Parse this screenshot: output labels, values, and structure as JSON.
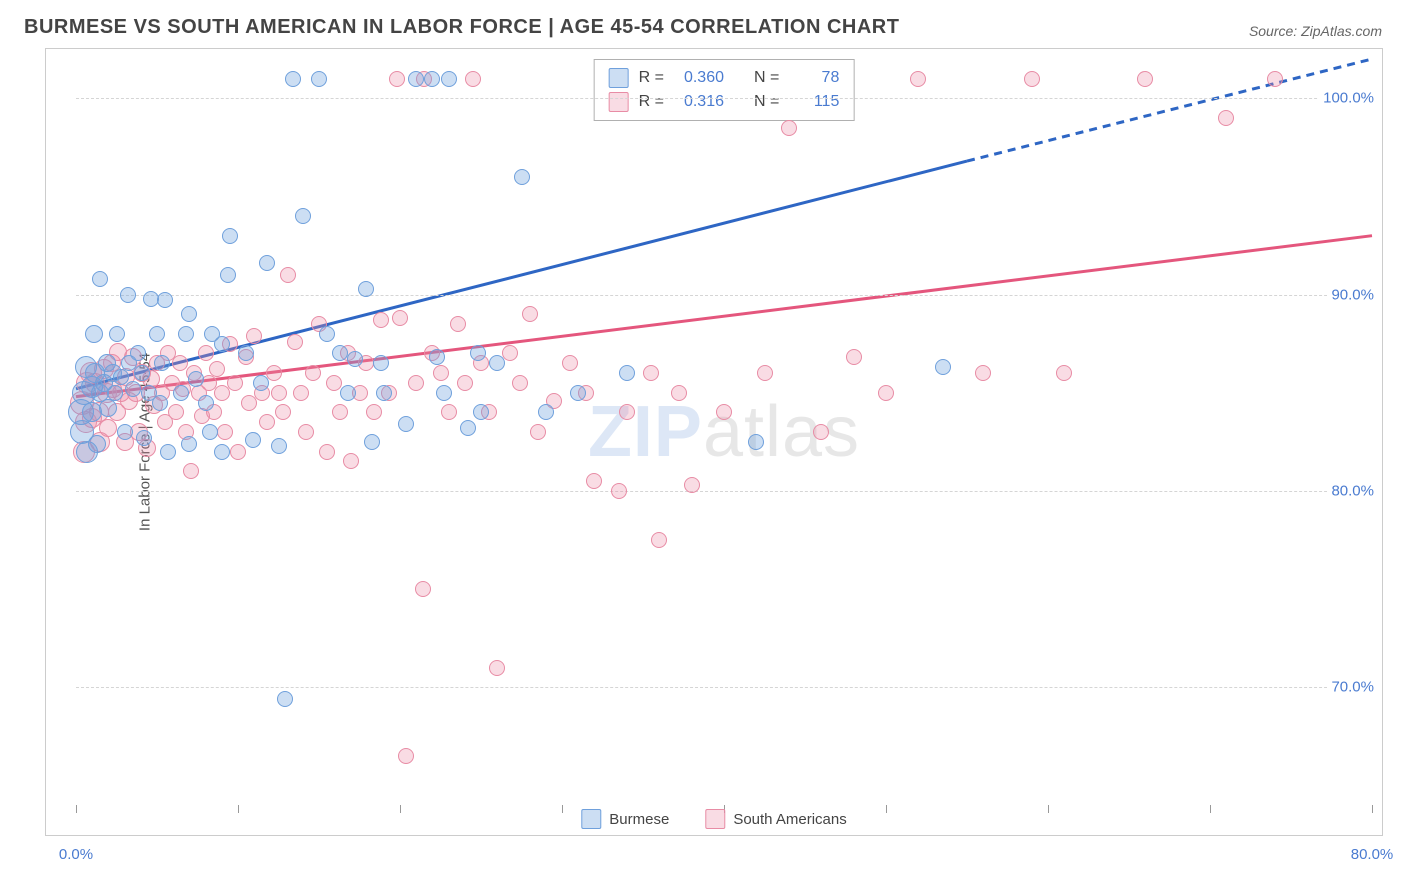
{
  "title": "BURMESE VS SOUTH AMERICAN IN LABOR FORCE | AGE 45-54 CORRELATION CHART",
  "source": "Source: ZipAtlas.com",
  "y_axis_label": "In Labor Force | Age 45-54",
  "watermark": {
    "zip": "ZIP",
    "atlas": "atlas"
  },
  "axes": {
    "x_min": 0,
    "x_max": 80,
    "y_min": 64,
    "y_max": 102,
    "x_ticks": [
      0,
      10,
      20,
      30,
      40,
      50,
      60,
      70,
      80
    ],
    "x_tick_labels": {
      "0": "0.0%",
      "80": "80.0%"
    },
    "y_grid": [
      70,
      80,
      90,
      100
    ],
    "y_tick_labels": {
      "70": "70.0%",
      "80": "80.0%",
      "90": "90.0%",
      "100": "100.0%"
    }
  },
  "colors": {
    "blue_fill": "rgba(110,160,220,0.35)",
    "blue_stroke": "#6fa0dc",
    "blue_line": "#2e66c4",
    "pink_fill": "rgba(235,140,165,0.30)",
    "pink_stroke": "#e88ca5",
    "pink_line": "#e4567d",
    "tick_text": "#4a7bd0",
    "grid": "#d5d5d5",
    "border": "#cccccc"
  },
  "legend_stats": {
    "series1": {
      "r_label": "R =",
      "r_value": "0.360",
      "n_label": "N =",
      "n_value": "78"
    },
    "series2": {
      "r_label": "R =",
      "r_value": "0.316",
      "n_label": "N =",
      "n_value": "115"
    }
  },
  "bottom_legend": {
    "series1_name": "Burmese",
    "series2_name": "South Americans"
  },
  "trend_lines": {
    "blue": {
      "x1": 0,
      "y1": 85.2,
      "x2_solid": 55,
      "y2_solid": 96.8,
      "x2_dash": 80,
      "y2_dash": 102.0
    },
    "pink": {
      "x1": 0,
      "y1": 84.8,
      "x2": 80,
      "y2": 93.0
    }
  },
  "point_radius_range": {
    "min": 6,
    "max": 13
  },
  "series": {
    "blue": [
      {
        "x": 0.3,
        "y": 84.0,
        "r": 13
      },
      {
        "x": 0.5,
        "y": 85.0,
        "r": 12
      },
      {
        "x": 0.4,
        "y": 83.0,
        "r": 12
      },
      {
        "x": 0.7,
        "y": 82.0,
        "r": 11
      },
      {
        "x": 0.6,
        "y": 86.3,
        "r": 11
      },
      {
        "x": 1.0,
        "y": 85.3,
        "r": 11
      },
      {
        "x": 1.1,
        "y": 88.0,
        "r": 9
      },
      {
        "x": 1.0,
        "y": 84.0,
        "r": 10
      },
      {
        "x": 1.2,
        "y": 86.0,
        "r": 10
      },
      {
        "x": 1.3,
        "y": 82.4,
        "r": 9
      },
      {
        "x": 1.5,
        "y": 85.0,
        "r": 9
      },
      {
        "x": 1.5,
        "y": 90.8,
        "r": 8
      },
      {
        "x": 1.7,
        "y": 85.5,
        "r": 9
      },
      {
        "x": 1.9,
        "y": 86.5,
        "r": 9
      },
      {
        "x": 2.0,
        "y": 84.2,
        "r": 9
      },
      {
        "x": 2.3,
        "y": 86.0,
        "r": 9
      },
      {
        "x": 2.4,
        "y": 85.0,
        "r": 8
      },
      {
        "x": 2.5,
        "y": 88.0,
        "r": 8
      },
      {
        "x": 2.8,
        "y": 85.8,
        "r": 8
      },
      {
        "x": 3.3,
        "y": 86.5,
        "r": 8
      },
      {
        "x": 3.0,
        "y": 83.0,
        "r": 8
      },
      {
        "x": 3.2,
        "y": 90.0,
        "r": 8
      },
      {
        "x": 3.5,
        "y": 85.2,
        "r": 8
      },
      {
        "x": 3.8,
        "y": 87.0,
        "r": 8
      },
      {
        "x": 4.1,
        "y": 86.0,
        "r": 8
      },
      {
        "x": 4.5,
        "y": 85.0,
        "r": 8
      },
      {
        "x": 4.2,
        "y": 82.7,
        "r": 8
      },
      {
        "x": 4.6,
        "y": 89.8,
        "r": 8
      },
      {
        "x": 5.0,
        "y": 88.0,
        "r": 8
      },
      {
        "x": 5.3,
        "y": 86.5,
        "r": 8
      },
      {
        "x": 5.7,
        "y": 82.0,
        "r": 8
      },
      {
        "x": 5.5,
        "y": 89.7,
        "r": 8
      },
      {
        "x": 5.2,
        "y": 84.5,
        "r": 8
      },
      {
        "x": 6.5,
        "y": 85.0,
        "r": 8
      },
      {
        "x": 6.8,
        "y": 88.0,
        "r": 8
      },
      {
        "x": 7.0,
        "y": 89.0,
        "r": 8
      },
      {
        "x": 7.4,
        "y": 85.7,
        "r": 8
      },
      {
        "x": 7.0,
        "y": 82.4,
        "r": 8
      },
      {
        "x": 8.4,
        "y": 88.0,
        "r": 8
      },
      {
        "x": 8.0,
        "y": 84.5,
        "r": 8
      },
      {
        "x": 8.3,
        "y": 83.0,
        "r": 8
      },
      {
        "x": 9.0,
        "y": 87.5,
        "r": 8
      },
      {
        "x": 9.4,
        "y": 91.0,
        "r": 8
      },
      {
        "x": 9.5,
        "y": 93.0,
        "r": 8
      },
      {
        "x": 9.0,
        "y": 82.0,
        "r": 8
      },
      {
        "x": 10.5,
        "y": 87.0,
        "r": 8
      },
      {
        "x": 10.9,
        "y": 82.6,
        "r": 8
      },
      {
        "x": 11.4,
        "y": 85.5,
        "r": 8
      },
      {
        "x": 11.8,
        "y": 91.6,
        "r": 8
      },
      {
        "x": 12.5,
        "y": 82.3,
        "r": 8
      },
      {
        "x": 12.9,
        "y": 69.4,
        "r": 8
      },
      {
        "x": 13.4,
        "y": 101.0,
        "r": 8
      },
      {
        "x": 14.0,
        "y": 94.0,
        "r": 8
      },
      {
        "x": 15.0,
        "y": 101.0,
        "r": 8
      },
      {
        "x": 15.5,
        "y": 88.0,
        "r": 8
      },
      {
        "x": 16.3,
        "y": 87.0,
        "r": 8
      },
      {
        "x": 16.8,
        "y": 85.0,
        "r": 8
      },
      {
        "x": 17.9,
        "y": 90.3,
        "r": 8
      },
      {
        "x": 17.2,
        "y": 86.7,
        "r": 8
      },
      {
        "x": 18.3,
        "y": 82.5,
        "r": 8
      },
      {
        "x": 18.8,
        "y": 86.5,
        "r": 8
      },
      {
        "x": 19.0,
        "y": 85.0,
        "r": 8
      },
      {
        "x": 20.4,
        "y": 83.4,
        "r": 8
      },
      {
        "x": 21.0,
        "y": 101.0,
        "r": 8
      },
      {
        "x": 22.0,
        "y": 101.0,
        "r": 8
      },
      {
        "x": 23.0,
        "y": 101.0,
        "r": 8
      },
      {
        "x": 22.7,
        "y": 85.0,
        "r": 8
      },
      {
        "x": 22.3,
        "y": 86.8,
        "r": 8
      },
      {
        "x": 24.2,
        "y": 83.2,
        "r": 8
      },
      {
        "x": 24.8,
        "y": 87.0,
        "r": 8
      },
      {
        "x": 25.0,
        "y": 84.0,
        "r": 8
      },
      {
        "x": 26.0,
        "y": 86.5,
        "r": 8
      },
      {
        "x": 27.5,
        "y": 96.0,
        "r": 8
      },
      {
        "x": 29.0,
        "y": 84.0,
        "r": 8
      },
      {
        "x": 31.0,
        "y": 85.0,
        "r": 8
      },
      {
        "x": 34.0,
        "y": 86.0,
        "r": 8
      },
      {
        "x": 42.0,
        "y": 82.5,
        "r": 8
      },
      {
        "x": 53.5,
        "y": 86.3,
        "r": 8
      }
    ],
    "pink": [
      {
        "x": 0.4,
        "y": 84.5,
        "r": 12
      },
      {
        "x": 0.6,
        "y": 83.5,
        "r": 11
      },
      {
        "x": 0.7,
        "y": 85.5,
        "r": 11
      },
      {
        "x": 0.5,
        "y": 82.0,
        "r": 11
      },
      {
        "x": 0.9,
        "y": 86.0,
        "r": 11
      },
      {
        "x": 1.0,
        "y": 83.7,
        "r": 10
      },
      {
        "x": 1.2,
        "y": 85.5,
        "r": 10
      },
      {
        "x": 1.4,
        "y": 84.0,
        "r": 10
      },
      {
        "x": 1.5,
        "y": 82.5,
        "r": 10
      },
      {
        "x": 1.7,
        "y": 86.2,
        "r": 10
      },
      {
        "x": 1.9,
        "y": 85.0,
        "r": 10
      },
      {
        "x": 2.0,
        "y": 83.2,
        "r": 9
      },
      {
        "x": 2.2,
        "y": 86.5,
        "r": 9
      },
      {
        "x": 2.3,
        "y": 85.2,
        "r": 9
      },
      {
        "x": 2.5,
        "y": 84.0,
        "r": 9
      },
      {
        "x": 2.6,
        "y": 87.1,
        "r": 9
      },
      {
        "x": 2.8,
        "y": 85.0,
        "r": 9
      },
      {
        "x": 3.0,
        "y": 82.5,
        "r": 9
      },
      {
        "x": 3.1,
        "y": 85.8,
        "r": 9
      },
      {
        "x": 3.3,
        "y": 84.6,
        "r": 9
      },
      {
        "x": 3.5,
        "y": 86.8,
        "r": 9
      },
      {
        "x": 3.7,
        "y": 85.0,
        "r": 9
      },
      {
        "x": 3.9,
        "y": 83.0,
        "r": 9
      },
      {
        "x": 4.1,
        "y": 86.0,
        "r": 9
      },
      {
        "x": 4.4,
        "y": 82.2,
        "r": 9
      },
      {
        "x": 4.6,
        "y": 85.7,
        "r": 9
      },
      {
        "x": 4.8,
        "y": 84.4,
        "r": 9
      },
      {
        "x": 5.0,
        "y": 86.5,
        "r": 8
      },
      {
        "x": 5.3,
        "y": 85.0,
        "r": 8
      },
      {
        "x": 5.5,
        "y": 83.5,
        "r": 8
      },
      {
        "x": 5.7,
        "y": 87.0,
        "r": 8
      },
      {
        "x": 5.9,
        "y": 85.5,
        "r": 8
      },
      {
        "x": 6.2,
        "y": 84.0,
        "r": 8
      },
      {
        "x": 6.4,
        "y": 86.5,
        "r": 8
      },
      {
        "x": 6.6,
        "y": 85.2,
        "r": 8
      },
      {
        "x": 6.8,
        "y": 83.0,
        "r": 8
      },
      {
        "x": 7.1,
        "y": 81.0,
        "r": 8
      },
      {
        "x": 7.3,
        "y": 86.0,
        "r": 8
      },
      {
        "x": 7.6,
        "y": 85.0,
        "r": 8
      },
      {
        "x": 7.8,
        "y": 83.8,
        "r": 8
      },
      {
        "x": 8.0,
        "y": 87.0,
        "r": 8
      },
      {
        "x": 8.2,
        "y": 85.5,
        "r": 8
      },
      {
        "x": 8.5,
        "y": 84.0,
        "r": 8
      },
      {
        "x": 8.7,
        "y": 86.2,
        "r": 8
      },
      {
        "x": 9.0,
        "y": 85.0,
        "r": 8
      },
      {
        "x": 9.2,
        "y": 83.0,
        "r": 8
      },
      {
        "x": 9.5,
        "y": 87.5,
        "r": 8
      },
      {
        "x": 9.8,
        "y": 85.5,
        "r": 8
      },
      {
        "x": 10.0,
        "y": 82.0,
        "r": 8
      },
      {
        "x": 10.5,
        "y": 86.8,
        "r": 8
      },
      {
        "x": 10.7,
        "y": 84.5,
        "r": 8
      },
      {
        "x": 11.0,
        "y": 87.9,
        "r": 8
      },
      {
        "x": 11.5,
        "y": 85.0,
        "r": 8
      },
      {
        "x": 11.8,
        "y": 83.5,
        "r": 8
      },
      {
        "x": 12.2,
        "y": 86.0,
        "r": 8
      },
      {
        "x": 12.5,
        "y": 85.0,
        "r": 8
      },
      {
        "x": 12.8,
        "y": 84.0,
        "r": 8
      },
      {
        "x": 13.1,
        "y": 91.0,
        "r": 8
      },
      {
        "x": 13.5,
        "y": 87.6,
        "r": 8
      },
      {
        "x": 13.9,
        "y": 85.0,
        "r": 8
      },
      {
        "x": 14.2,
        "y": 83.0,
        "r": 8
      },
      {
        "x": 14.6,
        "y": 86.0,
        "r": 8
      },
      {
        "x": 15.0,
        "y": 88.5,
        "r": 8
      },
      {
        "x": 15.5,
        "y": 82.0,
        "r": 8
      },
      {
        "x": 15.9,
        "y": 85.5,
        "r": 8
      },
      {
        "x": 16.3,
        "y": 84.0,
        "r": 8
      },
      {
        "x": 16.8,
        "y": 87.0,
        "r": 8
      },
      {
        "x": 17.0,
        "y": 81.5,
        "r": 8
      },
      {
        "x": 17.5,
        "y": 85.0,
        "r": 8
      },
      {
        "x": 17.9,
        "y": 86.5,
        "r": 8
      },
      {
        "x": 18.4,
        "y": 84.0,
        "r": 8
      },
      {
        "x": 18.8,
        "y": 88.7,
        "r": 8
      },
      {
        "x": 19.3,
        "y": 85.0,
        "r": 8
      },
      {
        "x": 19.8,
        "y": 101.0,
        "r": 8
      },
      {
        "x": 20.0,
        "y": 88.8,
        "r": 8
      },
      {
        "x": 20.4,
        "y": 66.5,
        "r": 8
      },
      {
        "x": 21.0,
        "y": 85.5,
        "r": 8
      },
      {
        "x": 21.4,
        "y": 75.0,
        "r": 8
      },
      {
        "x": 21.5,
        "y": 101.0,
        "r": 8
      },
      {
        "x": 22.0,
        "y": 87.0,
        "r": 8
      },
      {
        "x": 22.5,
        "y": 86.0,
        "r": 8
      },
      {
        "x": 23.0,
        "y": 84.0,
        "r": 8
      },
      {
        "x": 23.6,
        "y": 88.5,
        "r": 8
      },
      {
        "x": 24.0,
        "y": 85.5,
        "r": 8
      },
      {
        "x": 24.5,
        "y": 101.0,
        "r": 8
      },
      {
        "x": 25.0,
        "y": 86.5,
        "r": 8
      },
      {
        "x": 25.5,
        "y": 84.0,
        "r": 8
      },
      {
        "x": 26.0,
        "y": 71.0,
        "r": 8
      },
      {
        "x": 26.8,
        "y": 87.0,
        "r": 8
      },
      {
        "x": 27.4,
        "y": 85.5,
        "r": 8
      },
      {
        "x": 28.0,
        "y": 89.0,
        "r": 8
      },
      {
        "x": 28.5,
        "y": 83.0,
        "r": 8
      },
      {
        "x": 29.5,
        "y": 84.6,
        "r": 8
      },
      {
        "x": 30.5,
        "y": 86.5,
        "r": 8
      },
      {
        "x": 31.5,
        "y": 85.0,
        "r": 8
      },
      {
        "x": 32.0,
        "y": 80.5,
        "r": 8
      },
      {
        "x": 33.5,
        "y": 80.0,
        "r": 8
      },
      {
        "x": 34.0,
        "y": 84.0,
        "r": 8
      },
      {
        "x": 35.5,
        "y": 86.0,
        "r": 8
      },
      {
        "x": 36.0,
        "y": 77.5,
        "r": 8
      },
      {
        "x": 37.2,
        "y": 85.0,
        "r": 8
      },
      {
        "x": 38.0,
        "y": 80.3,
        "r": 8
      },
      {
        "x": 40.0,
        "y": 84.0,
        "r": 8
      },
      {
        "x": 42.5,
        "y": 86.0,
        "r": 8
      },
      {
        "x": 44.0,
        "y": 98.5,
        "r": 8
      },
      {
        "x": 46.0,
        "y": 83.0,
        "r": 8
      },
      {
        "x": 48.0,
        "y": 86.8,
        "r": 8
      },
      {
        "x": 50.0,
        "y": 85.0,
        "r": 8
      },
      {
        "x": 52.0,
        "y": 101.0,
        "r": 8
      },
      {
        "x": 56.0,
        "y": 86.0,
        "r": 8
      },
      {
        "x": 59.0,
        "y": 101.0,
        "r": 8
      },
      {
        "x": 61.0,
        "y": 86.0,
        "r": 8
      },
      {
        "x": 66.0,
        "y": 101.0,
        "r": 8
      },
      {
        "x": 71.0,
        "y": 99.0,
        "r": 8
      },
      {
        "x": 74.0,
        "y": 101.0,
        "r": 8
      }
    ]
  }
}
